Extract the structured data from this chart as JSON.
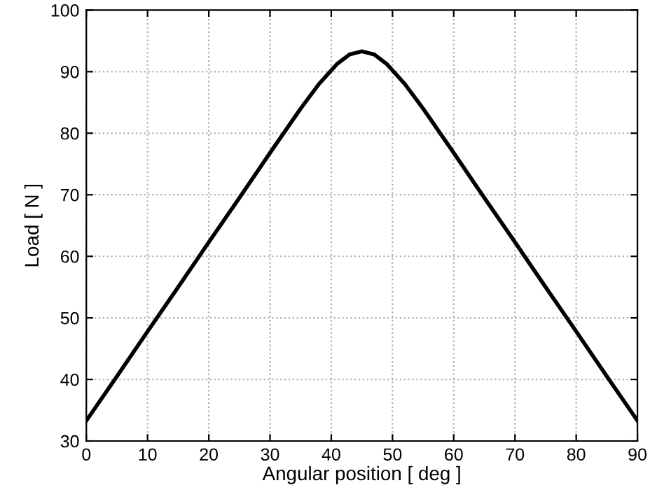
{
  "chart_data": {
    "type": "line",
    "xlabel": "Angular position [ deg ]",
    "ylabel": "Load [ N ]",
    "series": [
      {
        "color": "#000000",
        "x": [
          0,
          5,
          10,
          15,
          20,
          25,
          30,
          35,
          38,
          41,
          43,
          45,
          47,
          49,
          52,
          55,
          60,
          65,
          70,
          75,
          80,
          85,
          90
        ],
        "values": [
          33.3,
          40.5,
          47.8,
          55,
          62.3,
          69.5,
          76.8,
          84,
          88,
          91.3,
          92.8,
          93.3,
          92.8,
          91.3,
          88,
          84,
          76.8,
          69.5,
          62.3,
          55,
          47.8,
          40.5,
          33.3
        ]
      }
    ],
    "xlim": [
      0,
      90
    ],
    "ylim": [
      30,
      100
    ],
    "xticks": [
      0,
      10,
      20,
      30,
      40,
      50,
      60,
      70,
      80,
      90
    ],
    "yticks": [
      30,
      40,
      50,
      60,
      70,
      80,
      90,
      100
    ],
    "grid": true,
    "line_style": "solid",
    "marker": "none",
    "legend": false
  }
}
